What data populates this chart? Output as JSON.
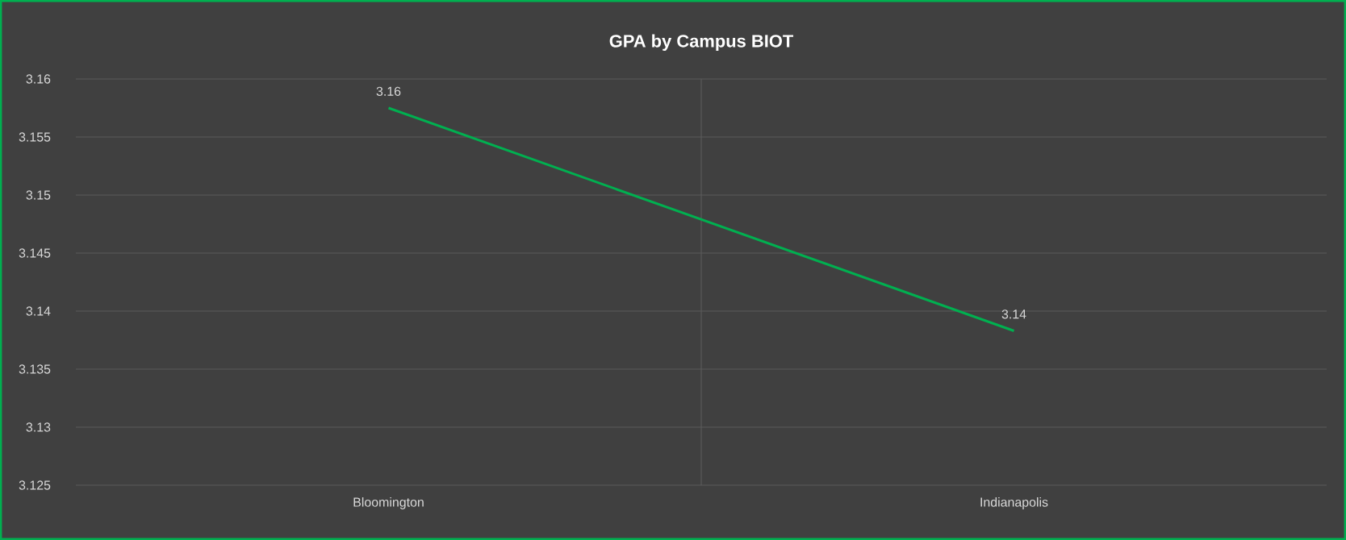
{
  "chart_data": {
    "type": "line",
    "title": "GPA by Campus BIOT",
    "categories": [
      "Bloomington",
      "Indianapolis"
    ],
    "series": [
      {
        "color": "#00b050",
        "values": [
          3.1575,
          3.1383
        ],
        "value_labels": [
          "3.16",
          "3.14"
        ]
      }
    ],
    "ylim": [
      3.125,
      3.16
    ],
    "yticks": [
      3.125,
      3.13,
      3.135,
      3.14,
      3.145,
      3.15,
      3.155,
      3.16
    ],
    "grid": true,
    "marker": "none",
    "line_style": "solid"
  }
}
